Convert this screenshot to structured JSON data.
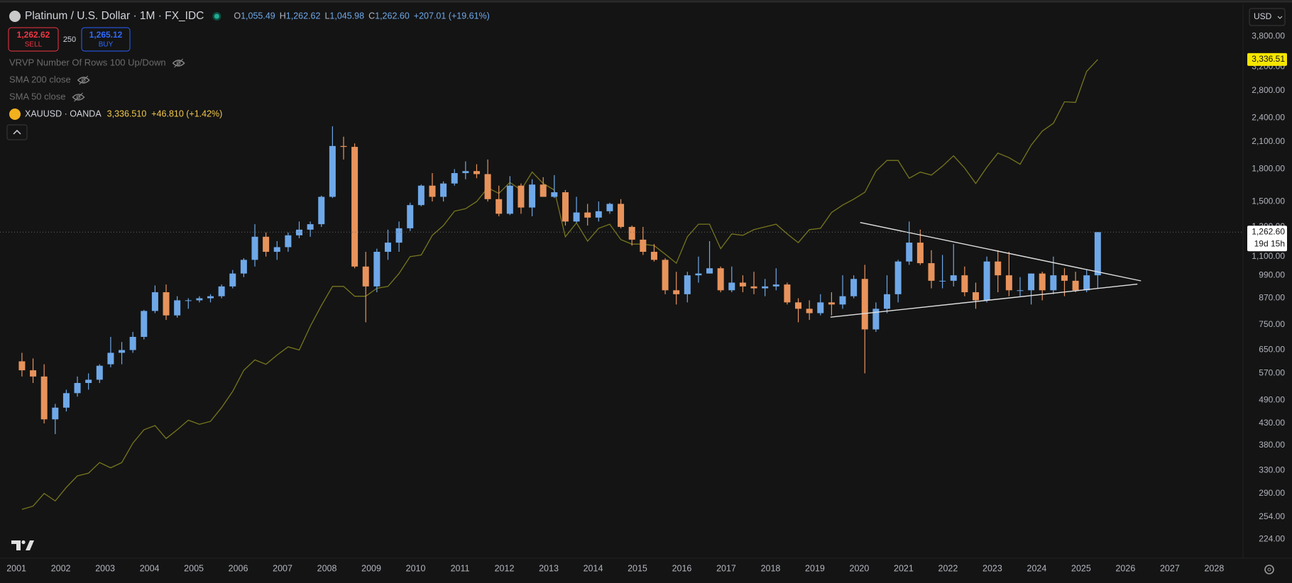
{
  "header": {
    "symbol": "Platinum / U.S. Dollar · 1M · FX_IDC",
    "ohlc": [
      {
        "key": "O",
        "value": "1,055.49"
      },
      {
        "key": "H",
        "value": "1,262.62"
      },
      {
        "key": "L",
        "value": "1,045.98"
      },
      {
        "key": "C",
        "value": "1,262.60"
      }
    ],
    "change": "+207.01 (+19.61%)"
  },
  "trade": {
    "sell_price": "1,262.62",
    "sell": "SELL",
    "quantity": "250",
    "buy_price": "1,265.12",
    "buy": "BUY"
  },
  "indicators": [
    "VRVP Number Of Rows 100 Up/Down",
    "SMA 200 close",
    "SMA 50 close"
  ],
  "compare": {
    "symbol": "XAUUSD · OANDA",
    "last": "3,336.510",
    "change": "+46.810 (+1.42%)"
  },
  "currency": "USD",
  "chart_data": {
    "type": "candlestick",
    "log_scale": true,
    "grid": false,
    "xlim": [
      2000.63,
      2028.65
    ],
    "xticks": [
      2001,
      2002,
      2003,
      2004,
      2005,
      2006,
      2007,
      2008,
      2009,
      2010,
      2011,
      2012,
      2013,
      2014,
      2015,
      2016,
      2017,
      2018,
      2019,
      2020,
      2021,
      2022,
      2023,
      2024,
      2025,
      2026,
      2027,
      2028
    ],
    "ylim": [
      201.4,
      4553
    ],
    "yticks": [
      {
        "value": 3800,
        "label": "3,800.00"
      },
      {
        "value": 3200,
        "label": "3,200.00"
      },
      {
        "value": 2800,
        "label": "2,800.00"
      },
      {
        "value": 2400,
        "label": "2,400.00"
      },
      {
        "value": 2100,
        "label": "2,100.00"
      },
      {
        "value": 1800,
        "label": "1,800.00"
      },
      {
        "value": 1500,
        "label": "1,500.00"
      },
      {
        "value": 1300,
        "label": "1,300.00"
      },
      {
        "value": 1100,
        "label": "1,100.00"
      },
      {
        "value": 990,
        "label": "990.00"
      },
      {
        "value": 870,
        "label": "870.00"
      },
      {
        "value": 750,
        "label": "750.00"
      },
      {
        "value": 650,
        "label": "650.00"
      },
      {
        "value": 570,
        "label": "570.00"
      },
      {
        "value": 490,
        "label": "490.00"
      },
      {
        "value": 430,
        "label": "430.00"
      },
      {
        "value": 380,
        "label": "380.00"
      },
      {
        "value": 330,
        "label": "330.00"
      },
      {
        "value": 290,
        "label": "290.00"
      },
      {
        "value": 254,
        "label": "254.00"
      },
      {
        "value": 224,
        "label": "224.00"
      }
    ],
    "x": [
      2001.125,
      2001.375,
      2001.625,
      2001.875,
      2002.125,
      2002.375,
      2002.625,
      2002.875,
      2003.125,
      2003.375,
      2003.625,
      2003.875,
      2004.125,
      2004.375,
      2004.625,
      2004.875,
      2005.125,
      2005.375,
      2005.625,
      2005.875,
      2006.125,
      2006.375,
      2006.625,
      2006.875,
      2007.125,
      2007.375,
      2007.625,
      2007.875,
      2008.125,
      2008.375,
      2008.625,
      2008.875,
      2009.125,
      2009.375,
      2009.625,
      2009.875,
      2010.125,
      2010.375,
      2010.625,
      2010.875,
      2011.125,
      2011.375,
      2011.625,
      2011.875,
      2012.125,
      2012.375,
      2012.625,
      2012.875,
      2013.125,
      2013.375,
      2013.625,
      2013.875,
      2014.125,
      2014.375,
      2014.625,
      2014.875,
      2015.125,
      2015.375,
      2015.625,
      2015.875,
      2016.125,
      2016.375,
      2016.625,
      2016.875,
      2017.125,
      2017.375,
      2017.625,
      2017.875,
      2018.125,
      2018.375,
      2018.625,
      2018.875,
      2019.125,
      2019.375,
      2019.625,
      2019.875,
      2020.125,
      2020.375,
      2020.625,
      2020.875,
      2021.125,
      2021.375,
      2021.625,
      2021.875,
      2022.125,
      2022.375,
      2022.625,
      2022.875,
      2023.125,
      2023.375,
      2023.625,
      2023.875,
      2024.125,
      2024.375,
      2024.625,
      2024.875,
      2025.125,
      2025.375
    ],
    "series": [
      {
        "type": "candlestick",
        "up_color": "#6fa8e8",
        "down_color": "#e8935c",
        "ohlc": [
          [
            610,
            640,
            560,
            580
          ],
          [
            580,
            620,
            540,
            560
          ],
          [
            560,
            600,
            430,
            440
          ],
          [
            440,
            480,
            405,
            470
          ],
          [
            470,
            520,
            460,
            510
          ],
          [
            510,
            560,
            500,
            540
          ],
          [
            540,
            570,
            520,
            550
          ],
          [
            550,
            600,
            540,
            595
          ],
          [
            600,
            700,
            590,
            640
          ],
          [
            640,
            680,
            600,
            650
          ],
          [
            650,
            720,
            640,
            700
          ],
          [
            700,
            815,
            690,
            810
          ],
          [
            810,
            935,
            800,
            900
          ],
          [
            900,
            940,
            770,
            790
          ],
          [
            790,
            880,
            780,
            860
          ],
          [
            860,
            870,
            820,
            860
          ],
          [
            860,
            880,
            850,
            870
          ],
          [
            870,
            890,
            850,
            880
          ],
          [
            880,
            940,
            870,
            930
          ],
          [
            930,
            1020,
            920,
            1000
          ],
          [
            1000,
            1090,
            980,
            1080
          ],
          [
            1080,
            1320,
            1040,
            1230
          ],
          [
            1230,
            1260,
            1100,
            1130
          ],
          [
            1130,
            1200,
            1080,
            1160
          ],
          [
            1160,
            1260,
            1130,
            1240
          ],
          [
            1240,
            1340,
            1220,
            1280
          ],
          [
            1280,
            1340,
            1230,
            1320
          ],
          [
            1320,
            1550,
            1300,
            1540
          ],
          [
            1540,
            2290,
            1530,
            2050
          ],
          [
            2050,
            2160,
            1900,
            2040
          ],
          [
            2040,
            2080,
            1030,
            1040
          ],
          [
            1040,
            1130,
            760,
            930
          ],
          [
            930,
            1150,
            900,
            1130
          ],
          [
            1130,
            1280,
            1080,
            1190
          ],
          [
            1190,
            1340,
            1130,
            1290
          ],
          [
            1290,
            1490,
            1270,
            1470
          ],
          [
            1470,
            1650,
            1460,
            1640
          ],
          [
            1640,
            1760,
            1500,
            1540
          ],
          [
            1540,
            1680,
            1500,
            1660
          ],
          [
            1660,
            1800,
            1640,
            1760
          ],
          [
            1760,
            1880,
            1700,
            1780
          ],
          [
            1780,
            1850,
            1710,
            1750
          ],
          [
            1750,
            1900,
            1500,
            1520
          ],
          [
            1520,
            1640,
            1380,
            1400
          ],
          [
            1400,
            1730,
            1390,
            1640
          ],
          [
            1640,
            1660,
            1400,
            1450
          ],
          [
            1450,
            1700,
            1380,
            1650
          ],
          [
            1650,
            1720,
            1540,
            1540
          ],
          [
            1540,
            1740,
            1530,
            1580
          ],
          [
            1580,
            1600,
            1310,
            1340
          ],
          [
            1340,
            1540,
            1330,
            1410
          ],
          [
            1410,
            1480,
            1310,
            1370
          ],
          [
            1370,
            1500,
            1340,
            1420
          ],
          [
            1420,
            1490,
            1400,
            1480
          ],
          [
            1480,
            1520,
            1290,
            1300
          ],
          [
            1300,
            1310,
            1170,
            1210
          ],
          [
            1210,
            1300,
            1110,
            1130
          ],
          [
            1130,
            1180,
            1070,
            1080
          ],
          [
            1080,
            1090,
            890,
            910
          ],
          [
            910,
            1010,
            840,
            890
          ],
          [
            890,
            1010,
            850,
            990
          ],
          [
            990,
            1100,
            950,
            1000
          ],
          [
            1000,
            1200,
            1000,
            1030
          ],
          [
            1030,
            1040,
            900,
            910
          ],
          [
            910,
            1040,
            900,
            950
          ],
          [
            950,
            990,
            900,
            930
          ],
          [
            930,
            1010,
            890,
            920
          ],
          [
            920,
            970,
            880,
            930
          ],
          [
            930,
            1030,
            910,
            940
          ],
          [
            940,
            950,
            840,
            850
          ],
          [
            850,
            870,
            760,
            820
          ],
          [
            820,
            860,
            770,
            800
          ],
          [
            800,
            890,
            790,
            850
          ],
          [
            850,
            900,
            790,
            840
          ],
          [
            840,
            990,
            820,
            880
          ],
          [
            880,
            990,
            870,
            970
          ],
          [
            970,
            1050,
            570,
            730
          ],
          [
            730,
            850,
            720,
            820
          ],
          [
            820,
            990,
            800,
            890
          ],
          [
            890,
            1080,
            850,
            1070
          ],
          [
            1070,
            1340,
            1050,
            1190
          ],
          [
            1190,
            1280,
            1050,
            1060
          ],
          [
            1060,
            1140,
            920,
            960
          ],
          [
            960,
            1110,
            920,
            960
          ],
          [
            960,
            1180,
            930,
            990
          ],
          [
            990,
            1040,
            880,
            900
          ],
          [
            900,
            950,
            820,
            860
          ],
          [
            860,
            1100,
            850,
            1070
          ],
          [
            1070,
            1140,
            900,
            990
          ],
          [
            990,
            1130,
            880,
            910
          ],
          [
            910,
            980,
            880,
            910
          ],
          [
            910,
            1000,
            840,
            1000
          ],
          [
            1000,
            1010,
            860,
            910
          ],
          [
            910,
            1100,
            890,
            990
          ],
          [
            990,
            1030,
            880,
            960
          ],
          [
            960,
            1010,
            900,
            910
          ],
          [
            910,
            1020,
            900,
            990
          ],
          [
            990,
            1262.62,
            920,
            1262.6
          ]
        ]
      },
      {
        "type": "line",
        "color": "#77761f",
        "values": [
          265,
          270,
          290,
          278,
          300,
          320,
          325,
          345,
          335,
          345,
          385,
          415,
          425,
          395,
          415,
          438,
          428,
          435,
          470,
          515,
          580,
          615,
          600,
          632,
          662,
          650,
          743,
          835,
          930,
          930,
          880,
          880,
          920,
          930,
          1000,
          1100,
          1110,
          1240,
          1310,
          1420,
          1440,
          1500,
          1620,
          1570,
          1670,
          1600,
          1770,
          1660,
          1600,
          1230,
          1330,
          1200,
          1290,
          1320,
          1210,
          1180,
          1180,
          1170,
          1115,
          1060,
          1230,
          1320,
          1320,
          1150,
          1250,
          1240,
          1280,
          1300,
          1320,
          1250,
          1190,
          1280,
          1290,
          1410,
          1470,
          1520,
          1580,
          1780,
          1890,
          1890,
          1710,
          1770,
          1740,
          1830,
          1940,
          1810,
          1660,
          1820,
          1970,
          1920,
          1850,
          2060,
          2230,
          2330,
          2630,
          2620,
          3120,
          3336.51
        ]
      }
    ],
    "trendlines": [
      {
        "color": "#e0e0e0",
        "x": [
          2020.02,
          2026.35
        ],
        "y": [
          1333,
          959.5
        ]
      },
      {
        "color": "#e0e0e0",
        "x": [
          2019.35,
          2026.27
        ],
        "y": [
          782,
          942
        ]
      }
    ],
    "price_labels": [
      {
        "value": 1262.6,
        "label": "1,262.60",
        "countdown": "19d 15h",
        "color": "#ffffff"
      },
      {
        "value": 3336.51,
        "label": "3,336.51",
        "color": "#f7e600"
      }
    ]
  }
}
